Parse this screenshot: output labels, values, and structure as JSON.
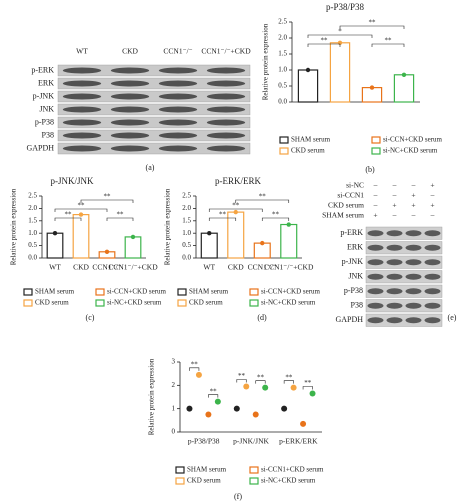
{
  "panel_labels": [
    "(a)",
    "(b)",
    "(c)",
    "(d)",
    "(e)",
    "(f)"
  ],
  "blots": [
    {
      "lanes": [
        "WT",
        "CKD",
        "CCN1⁻/⁻",
        "CCN1⁻/⁻+CKD"
      ],
      "rows": [
        "p-ERK",
        "ERK",
        "p-JNK",
        "JNK",
        "p-P38",
        "P38",
        "GAPDH"
      ]
    },
    {
      "conditions": [
        {
          "name": "si-NC",
          "signs": [
            "–",
            "–",
            "–",
            "+"
          ]
        },
        {
          "name": "si-CCN1",
          "signs": [
            "–",
            "–",
            "+",
            "–"
          ]
        },
        {
          "name": "CKD serum",
          "signs": [
            "–",
            "+",
            "+",
            "+"
          ]
        },
        {
          "name": "SHAM serum",
          "signs": [
            "+",
            "–",
            "–",
            "–"
          ]
        }
      ],
      "rows": [
        "p-ERK",
        "ERK",
        "p-JNK",
        "JNK",
        "p-P38",
        "P38",
        "GAPDH"
      ]
    }
  ],
  "chart_data": [
    {
      "type": "bar",
      "title": "p-P38/P38",
      "y_label": "Relative protein expression",
      "values": [
        1.0,
        1.85,
        0.45,
        0.85
      ],
      "colors": [
        "#222222",
        "#f5a442",
        "#e8731a",
        "#3cb44b"
      ],
      "legend": [
        "SHAM serum",
        "CKD serum",
        "si-CCN+CKD serum",
        "si-NC+CKD serum"
      ],
      "annotations": [
        "**",
        "*",
        "**",
        "**"
      ],
      "ylim": [
        0,
        2.5
      ],
      "yticks": [
        {
          "value": 0,
          "label": "0.0"
        },
        0.5,
        {
          "value": 1,
          "label": "1.0"
        },
        1.5,
        {
          "value": 2,
          "label": "2.0"
        },
        2.5
      ]
    },
    {
      "type": "bar",
      "title": "p-JNK/JNK",
      "y_label": "Relative protein expression",
      "categories": [
        "WT",
        "CKD",
        "CCN1⁻/⁻",
        "CCN1⁻/⁻+CKD"
      ],
      "values": [
        1.0,
        1.75,
        0.25,
        0.85
      ],
      "colors": [
        "#222222",
        "#f5a442",
        "#e8731a",
        "#3cb44b"
      ],
      "legend": [
        "SHAM serum",
        "CKD serum",
        "si-CCN+CKD serum",
        "si-NC+CKD serum"
      ],
      "annotations": [
        "**",
        "**",
        "**",
        "**"
      ],
      "ylim": [
        0,
        2.5
      ],
      "yticks": [
        {
          "value": 0,
          "label": "0.0"
        },
        0.5,
        {
          "value": 1,
          "label": "1.0"
        },
        1.5,
        {
          "value": 2,
          "label": "2.0"
        },
        2.5
      ]
    },
    {
      "type": "bar",
      "title": "p-ERK/ERK",
      "y_label": "Relative protein expression",
      "categories": [
        "WT",
        "CKD",
        "CCN1⁻/⁻",
        "CCN1⁻/⁻+CKD"
      ],
      "values": [
        1.0,
        1.85,
        0.6,
        1.35
      ],
      "colors": [
        "#222222",
        "#f5a442",
        "#e8731a",
        "#3cb44b"
      ],
      "legend": [
        "SHAM serum",
        "CKD serum",
        "si-CCN+CKD serum",
        "si-NC+CKD serum"
      ],
      "annotations": [
        "**",
        "**",
        "**",
        "**"
      ],
      "ylim": [
        0,
        2.5
      ],
      "yticks": [
        {
          "value": 0,
          "label": "0.0"
        },
        0.5,
        {
          "value": 1,
          "label": "1.0"
        },
        1.5,
        {
          "value": 2,
          "label": "2.0"
        },
        2.5
      ]
    },
    {
      "type": "dot",
      "y_label": "Relative protein expression",
      "categories": [
        "p-P38/P38",
        "p-JNK/JNK",
        "p-ERK/ERK"
      ],
      "series": [
        {
          "name": "SHAM serum",
          "color": "#222222",
          "values": [
            1.0,
            1.0,
            1.0
          ]
        },
        {
          "name": "CKD serum",
          "color": "#f5a442",
          "values": [
            2.45,
            1.95,
            1.9
          ]
        },
        {
          "name": "si-CCN1+CKD serum",
          "color": "#e8731a",
          "values": [
            0.75,
            0.75,
            0.35
          ]
        },
        {
          "name": "si-NC+CKD serum",
          "color": "#3cb44b",
          "values": [
            1.3,
            1.9,
            1.65
          ]
        }
      ],
      "annotations": [
        "**",
        "**",
        "**",
        "**",
        "**",
        "**"
      ],
      "ylim": [
        0,
        3
      ],
      "yticks": [
        0,
        1,
        2,
        3
      ]
    }
  ]
}
